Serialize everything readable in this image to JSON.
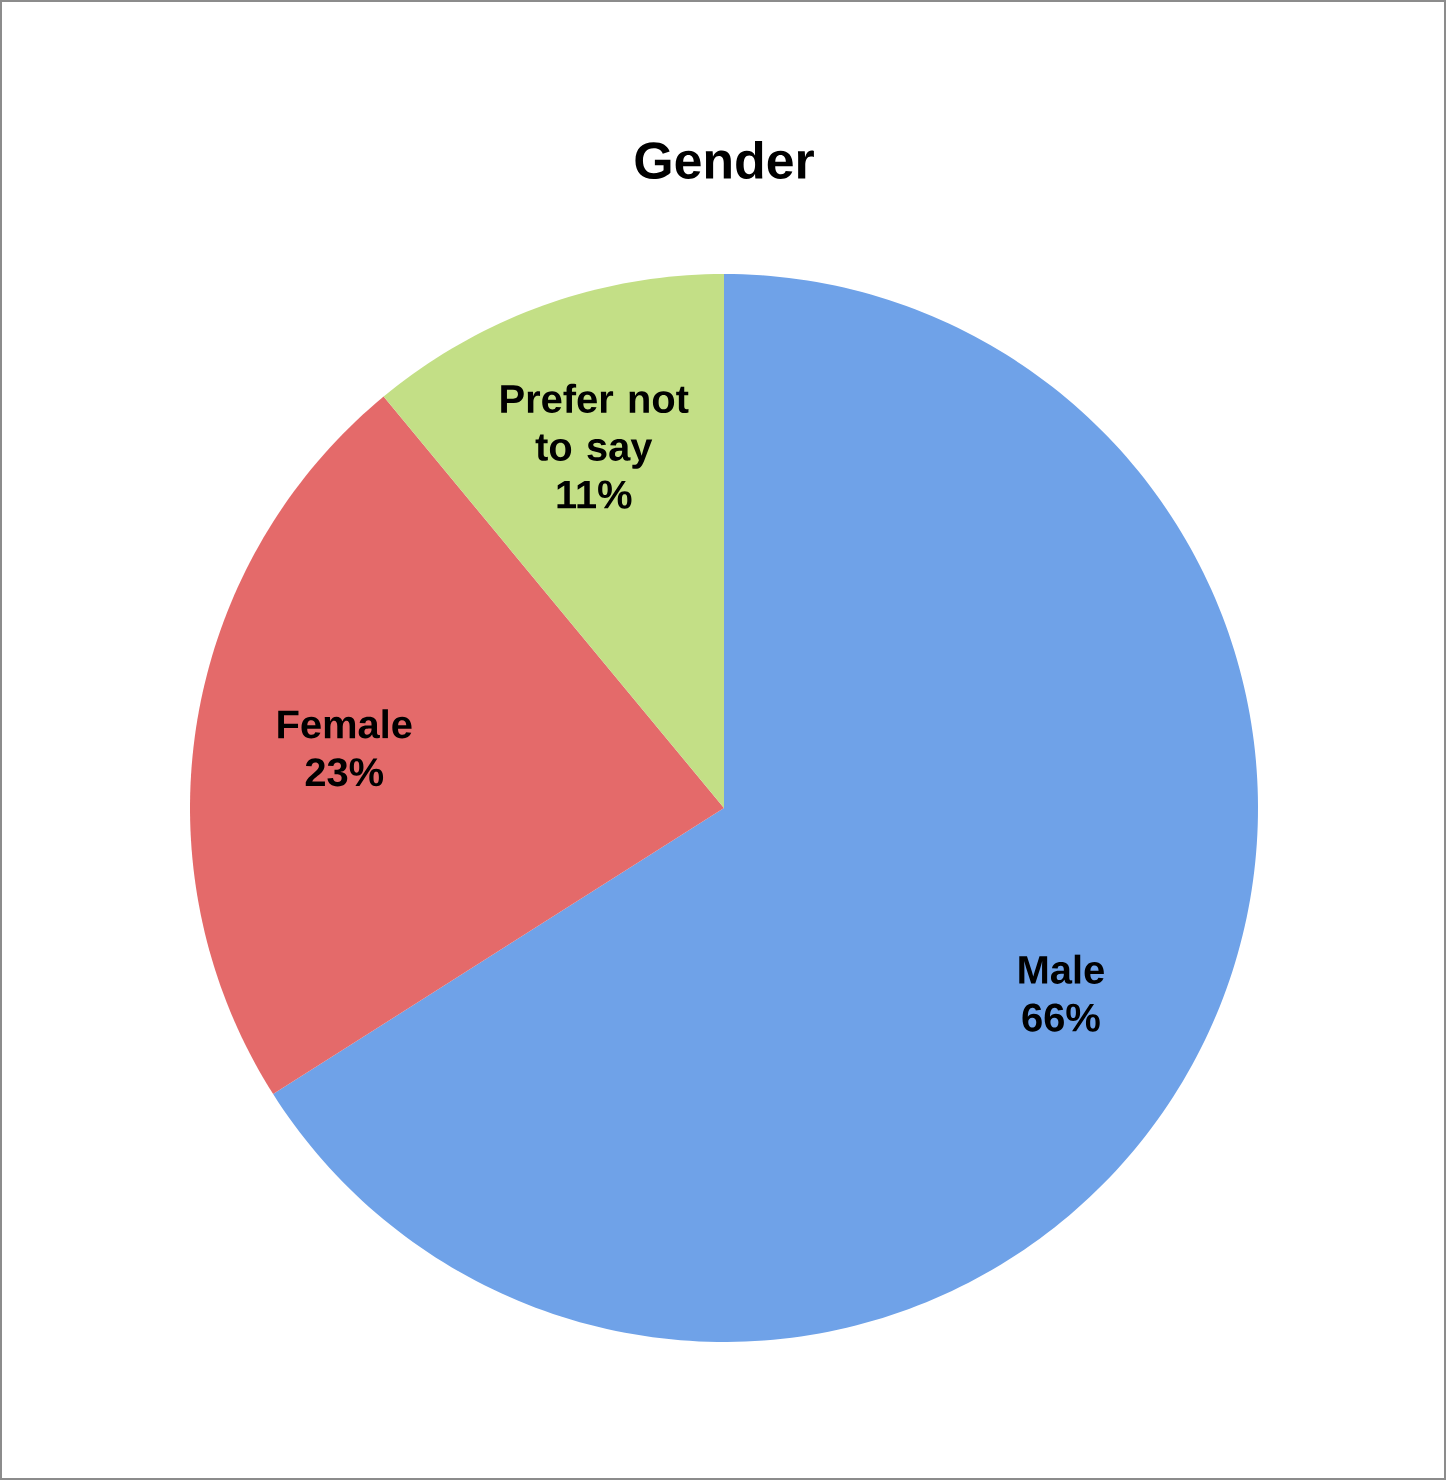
{
  "chart_data": {
    "type": "pie",
    "title": "Gender",
    "categories": [
      "Male",
      "Female",
      "Prefer not to say"
    ],
    "values": [
      66,
      23,
      11
    ],
    "value_labels": [
      "66%",
      "23%",
      "11%"
    ],
    "colors": [
      "#6fa2e8",
      "#e46a6a",
      "#c3df86"
    ]
  }
}
